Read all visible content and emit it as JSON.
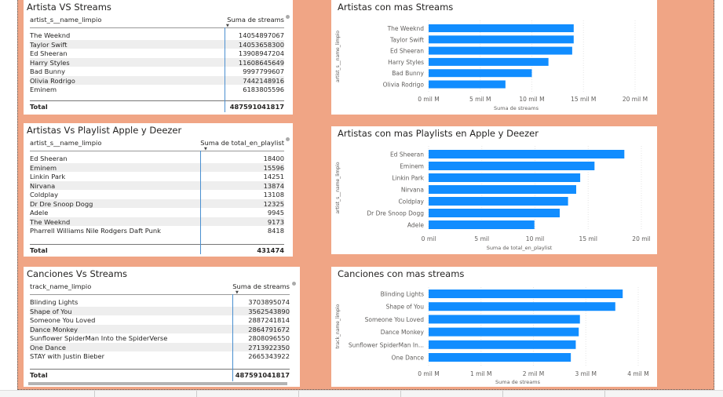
{
  "colors": {
    "canvas": "#f0a585",
    "bar": "#118dff",
    "grid": "#e6e6e6"
  },
  "tables": [
    {
      "title": "Artista VS Streams",
      "col1": "artist_s__name_limpio",
      "col2": "Suma de streams",
      "rows": [
        [
          "The Weeknd",
          "14054897067"
        ],
        [
          "Taylor Swift",
          "14053658300"
        ],
        [
          "Ed Sheeran",
          "13908947204"
        ],
        [
          "Harry Styles",
          "11608645649"
        ],
        [
          "Bad Bunny",
          "9997799607"
        ],
        [
          "Olivia Rodrigo",
          "7442148916"
        ],
        [
          "Eminem",
          "6183805596"
        ]
      ],
      "total_label": "Total",
      "total_value": "487591041817"
    },
    {
      "title": "Artistas Vs Playlist Apple y Deezer",
      "col1": "artist_s__name_limpio",
      "col2": "Suma de total_en_playlist",
      "rows": [
        [
          "Ed Sheeran",
          "18400"
        ],
        [
          "Eminem",
          "15596"
        ],
        [
          "Linkin Park",
          "14251"
        ],
        [
          "Nirvana",
          "13874"
        ],
        [
          "Coldplay",
          "13108"
        ],
        [
          "Dr Dre Snoop Dogg",
          "12325"
        ],
        [
          "Adele",
          "9945"
        ],
        [
          "The Weeknd",
          "9173"
        ],
        [
          "Pharrell Williams Nile Rodgers Daft Punk",
          "8418"
        ]
      ],
      "total_label": "Total",
      "total_value": "431474"
    },
    {
      "title": "Canciones Vs Streams",
      "col1": "track_name_limpio",
      "col2": "Suma de streams",
      "rows": [
        [
          "Blinding Lights",
          "3703895074"
        ],
        [
          "Shape of You",
          "3562543890"
        ],
        [
          "Someone You Loved",
          "2887241814"
        ],
        [
          "Dance Monkey",
          "2864791672"
        ],
        [
          "Sunflower SpiderMan Into the SpiderVerse",
          "2808096550"
        ],
        [
          "One Dance",
          "2713922350"
        ],
        [
          "STAY with Justin Bieber",
          "2665343922"
        ]
      ],
      "total_label": "Total",
      "total_value": "487591041817"
    }
  ],
  "chart_data": [
    {
      "type": "bar",
      "orientation": "horizontal",
      "title": "Artistas con mas Streams",
      "xlabel": "Suma de streams",
      "ylabel": "artist_s__name_limpio",
      "categories": [
        "The Weeknd",
        "Taylor Swift",
        "Ed Sheeran",
        "Harry Styles",
        "Bad Bunny",
        "Olivia Rodrigo"
      ],
      "values": [
        14054897067,
        14053658300,
        13908947204,
        11608645649,
        9997799607,
        7442148916
      ],
      "xlim": [
        0,
        20000000000
      ],
      "ticks": [
        0,
        5000000000,
        10000000000,
        15000000000,
        20000000000
      ],
      "tick_labels": [
        "0 mil M",
        "5 mil M",
        "10 mil M",
        "15 mil M",
        "20 mil M"
      ],
      "grid": true
    },
    {
      "type": "bar",
      "orientation": "horizontal",
      "title": "Artistas con mas Playlists en Apple y Deezer",
      "xlabel": "Suma de total_en_playlist",
      "ylabel": "artist_s__name_limpio",
      "categories": [
        "Ed Sheeran",
        "Eminem",
        "Linkin Park",
        "Nirvana",
        "Coldplay",
        "Dr Dre Snoop Dogg",
        "Adele"
      ],
      "values": [
        18400,
        15596,
        14251,
        13874,
        13108,
        12325,
        9945
      ],
      "xlim": [
        0,
        20000
      ],
      "ticks": [
        0,
        5000,
        10000,
        15000,
        20000
      ],
      "tick_labels": [
        "0 mil",
        "5 mil",
        "10 mil",
        "15 mil",
        "20 mil"
      ],
      "grid": true
    },
    {
      "type": "bar",
      "orientation": "horizontal",
      "title": "Canciones con mas streams",
      "xlabel": "Suma de streams",
      "ylabel": "track_name_limpio",
      "categories": [
        "Blinding Lights",
        "Shape of You",
        "Someone You Loved",
        "Dance Monkey",
        "Sunflower SpiderMan In...",
        "One Dance"
      ],
      "values": [
        3703895074,
        3562543890,
        2887241814,
        2864791672,
        2808096550,
        2713922350
      ],
      "xlim": [
        0,
        4000000000
      ],
      "ticks": [
        0,
        1000000000,
        2000000000,
        3000000000,
        4000000000
      ],
      "tick_labels": [
        "0 mil M",
        "1 mil M",
        "2 mil M",
        "3 mil M",
        "4 mil M"
      ],
      "grid": true
    }
  ]
}
